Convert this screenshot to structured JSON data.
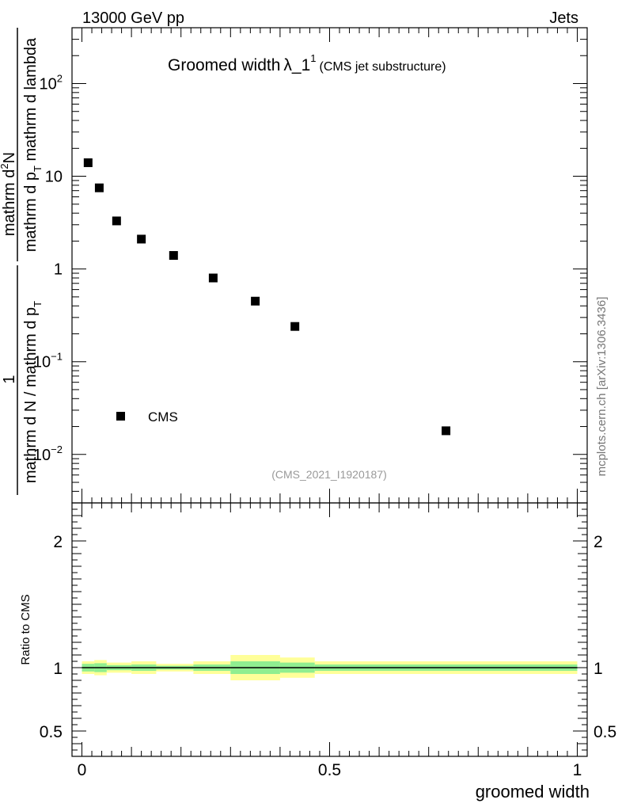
{
  "header": {
    "left": "13000 GeV pp",
    "right": "Jets"
  },
  "title": {
    "main": "Groomed width",
    "lambda": "λ_1",
    "sup": "1",
    "sub": "(CMS jet substructure)"
  },
  "analysis_id": "(CMS_2021_I1920187)",
  "side_credit": "mcplots.cern.ch [arXiv:1306.3436]",
  "y_label_main": {
    "frac1": "1",
    "frac1_den": "mathrm d N / mathrm d p",
    "frac1_den_sub": "T",
    "frac2_num": "mathrm d",
    "frac2_num_sup": "2",
    "frac2_num_tail": "N",
    "frac2_den": "mathrm d p",
    "frac2_den_sub": "T",
    "frac2_den_tail": " mathrm d lambda"
  },
  "y_label_ratio": "Ratio to CMS",
  "x_label": "groomed width",
  "colors": {
    "band_outer": "#ffff99",
    "band_inner": "#90ee90",
    "marker": "#000000"
  },
  "chart_data": [
    {
      "type": "scatter",
      "panel": "main",
      "yscale": "log",
      "ylim": [
        0.003,
        400
      ],
      "xlim": [
        -0.02,
        1.02
      ],
      "y_ticks": [
        0.01,
        0.1,
        1,
        10,
        100
      ],
      "y_tick_labels": [
        {
          "base": "10",
          "exp": "−2"
        },
        {
          "base": "10",
          "exp": "−1"
        },
        {
          "base": "1",
          "exp": ""
        },
        {
          "base": "10",
          "exp": ""
        },
        {
          "base": "10",
          "exp": "2"
        }
      ],
      "legend": {
        "position": "bottom-left"
      },
      "series": [
        {
          "name": "CMS",
          "x": [
            0.0125,
            0.035,
            0.07,
            0.12,
            0.185,
            0.265,
            0.35,
            0.43,
            0.735
          ],
          "y": [
            14,
            7.5,
            3.3,
            2.1,
            1.4,
            0.8,
            0.45,
            0.24,
            0.018
          ]
        }
      ]
    },
    {
      "type": "area",
      "panel": "ratio",
      "ylim": [
        0.3,
        2.3
      ],
      "xlim": [
        -0.02,
        1.02
      ],
      "y_ticks": [
        0.5,
        1,
        2
      ],
      "y_tick_labels": [
        "0.5",
        "1",
        "2"
      ],
      "x_ticks": [
        0,
        0.5,
        1
      ],
      "x_tick_labels": [
        "0",
        "0.5",
        "1"
      ],
      "reference_line": 1,
      "bins": [
        {
          "x0": 0.0,
          "x1": 0.025,
          "outer": [
            0.95,
            1.05
          ],
          "inner": [
            0.97,
            1.03
          ]
        },
        {
          "x0": 0.025,
          "x1": 0.05,
          "outer": [
            0.94,
            1.06
          ],
          "inner": [
            0.965,
            1.035
          ]
        },
        {
          "x0": 0.05,
          "x1": 0.1,
          "outer": [
            0.96,
            1.04
          ],
          "inner": [
            0.98,
            1.02
          ]
        },
        {
          "x0": 0.1,
          "x1": 0.15,
          "outer": [
            0.95,
            1.05
          ],
          "inner": [
            0.975,
            1.025
          ]
        },
        {
          "x0": 0.15,
          "x1": 0.225,
          "outer": [
            0.97,
            1.03
          ],
          "inner": [
            0.985,
            1.015
          ]
        },
        {
          "x0": 0.225,
          "x1": 0.3,
          "outer": [
            0.95,
            1.05
          ],
          "inner": [
            0.975,
            1.025
          ]
        },
        {
          "x0": 0.3,
          "x1": 0.4,
          "outer": [
            0.9,
            1.1
          ],
          "inner": [
            0.95,
            1.05
          ]
        },
        {
          "x0": 0.4,
          "x1": 0.47,
          "outer": [
            0.92,
            1.08
          ],
          "inner": [
            0.96,
            1.04
          ]
        },
        {
          "x0": 0.47,
          "x1": 1.0,
          "outer": [
            0.95,
            1.05
          ],
          "inner": [
            0.975,
            1.025
          ]
        }
      ]
    }
  ]
}
